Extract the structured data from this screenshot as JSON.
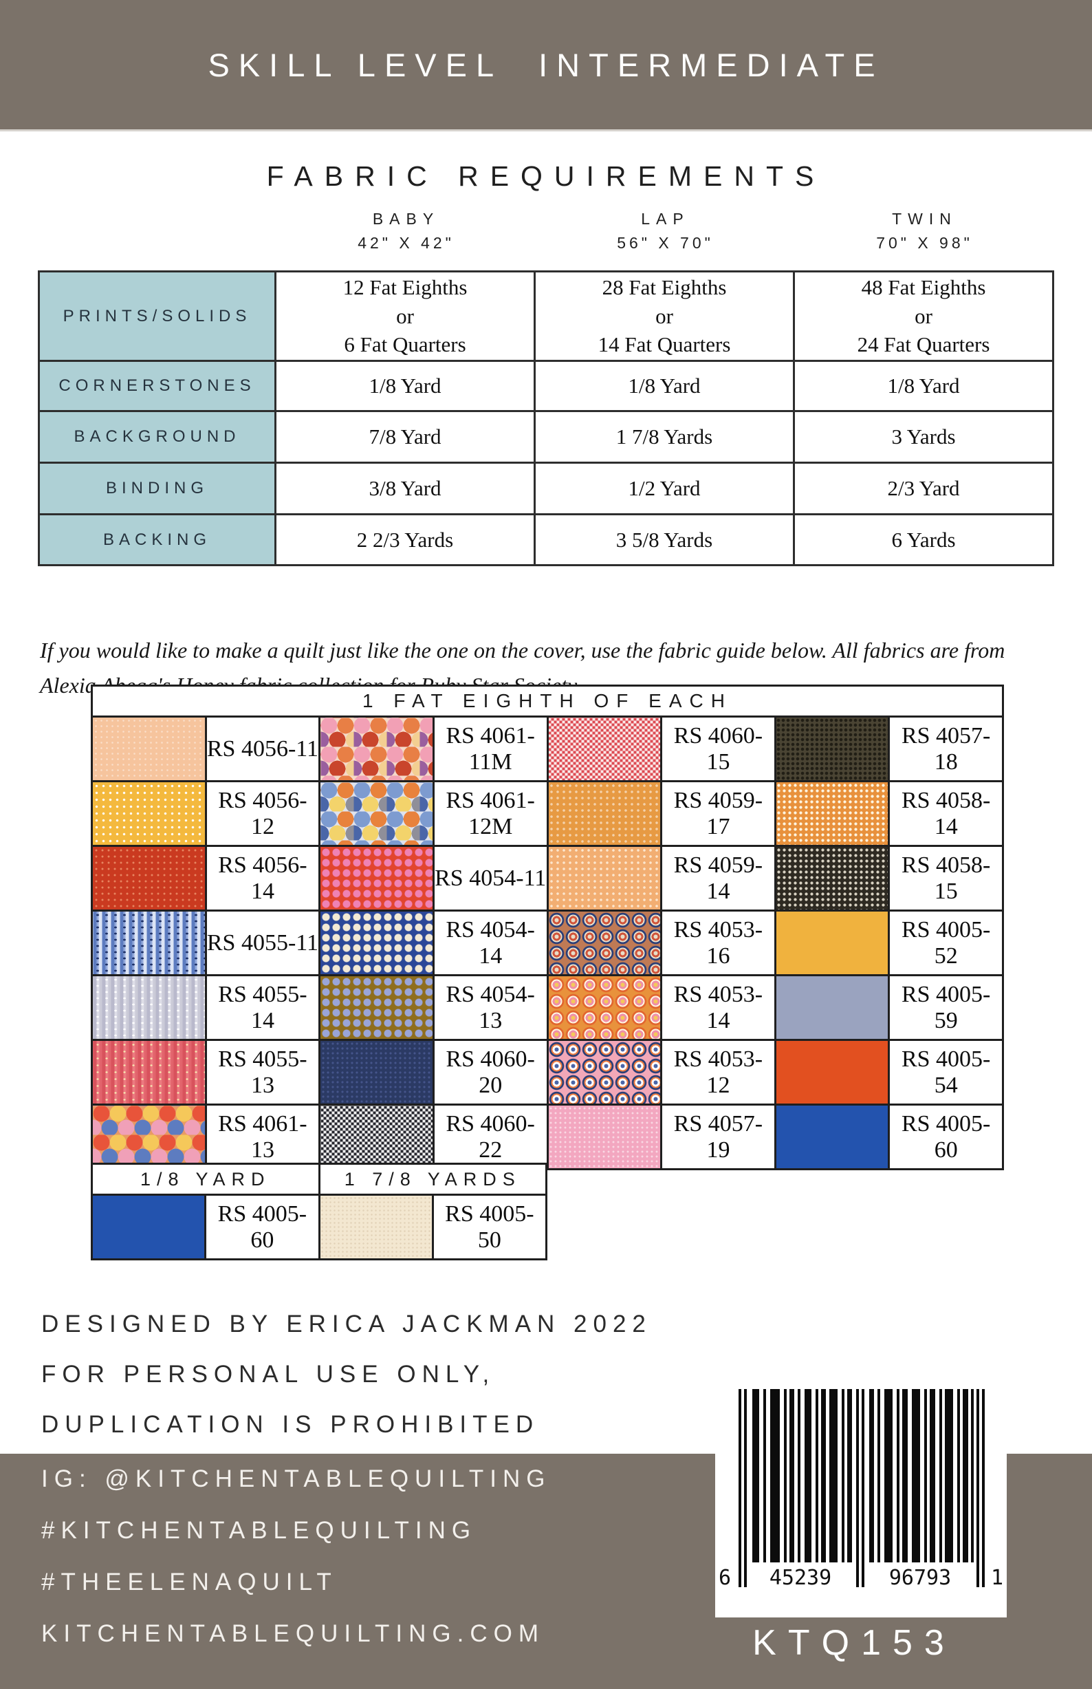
{
  "skill_banner": {
    "label": "SKILL LEVEL",
    "value": "INTERMEDIATE"
  },
  "fabric_requirements": {
    "title": "FABRIC REQUIREMENTS",
    "sizes": [
      {
        "name": "BABY",
        "dims": "42\" X 42\""
      },
      {
        "name": "LAP",
        "dims": "56\" X 70\""
      },
      {
        "name": "TWIN",
        "dims": "70\" X 98\""
      }
    ],
    "rows": [
      {
        "label": "PRINTS/SOLIDS",
        "values": [
          [
            "12 Fat Eighths",
            "or",
            "6 Fat Quarters"
          ],
          [
            "28 Fat Eighths",
            "or",
            "14 Fat Quarters"
          ],
          [
            "48 Fat Eighths",
            "or",
            "24 Fat Quarters"
          ]
        ]
      },
      {
        "label": "CORNERSTONES",
        "values": [
          "1/8 Yard",
          "1/8 Yard",
          "1/8 Yard"
        ]
      },
      {
        "label": "BACKGROUND",
        "values": [
          "7/8 Yard",
          "1 7/8 Yards",
          "3 Yards"
        ]
      },
      {
        "label": "BINDING",
        "values": [
          "3/8 Yard",
          "1/2 Yard",
          "2/3 Yard"
        ]
      },
      {
        "label": "BACKING",
        "values": [
          "2 2/3 Yards",
          "3 5/8 Yards",
          "6 Yards"
        ]
      }
    ]
  },
  "note": "If you would like to make a quilt just like the one on the cover, use the fabric guide below. All fabrics are from Alexia Abegg's Honey fabric collection for Ruby Star Society.",
  "fabric_guide": {
    "header": "1 FAT EIGHTH OF EACH",
    "rows": [
      [
        {
          "code": "RS 4056-11",
          "color": "#f6c49d"
        },
        {
          "code": "RS 4061-11M",
          "color": "#e87f45"
        },
        {
          "code": "RS 4060-15",
          "color": "#dd4a52"
        },
        {
          "code": "RS 4057-18",
          "color": "#4a4433"
        }
      ],
      [
        {
          "code": "RS 4056-12",
          "color": "#f4b93e"
        },
        {
          "code": "RS 4061-12M",
          "color": "#7d9bd0"
        },
        {
          "code": "RS 4059-17",
          "color": "#e79a43"
        },
        {
          "code": "RS 4058-14",
          "color": "#e8913c"
        }
      ],
      [
        {
          "code": "RS 4056-14",
          "color": "#ca3a20"
        },
        {
          "code": "RS 4054-11",
          "color": "#e2452f"
        },
        {
          "code": "RS 4059-14",
          "color": "#f2ae72"
        },
        {
          "code": "RS 4058-15",
          "color": "#2e2a22"
        }
      ],
      [
        {
          "code": "RS 4055-11",
          "color": "#5d7cc0"
        },
        {
          "code": "RS 4054-14",
          "color": "#2b4798"
        },
        {
          "code": "RS 4053-16",
          "color": "#2c3f77"
        },
        {
          "code": "RS 4005-52",
          "color": "#f0b23e"
        }
      ],
      [
        {
          "code": "RS 4055-14",
          "color": "#cbcbd8"
        },
        {
          "code": "RS 4054-13",
          "color": "#8f6e1e"
        },
        {
          "code": "RS 4053-14",
          "color": "#e8923c"
        },
        {
          "code": "RS 4005-59",
          "color": "#9aa3bf"
        }
      ],
      [
        {
          "code": "RS 4055-13",
          "color": "#e2646c"
        },
        {
          "code": "RS 4060-20",
          "color": "#2b3a64"
        },
        {
          "code": "RS 4053-12",
          "color": "#f2a8b8"
        },
        {
          "code": "RS 4005-54",
          "color": "#e25020"
        }
      ],
      [
        {
          "code": "RS 4061-13",
          "color": "#e8543a"
        },
        {
          "code": "RS 4060-22",
          "color": "#26262e"
        },
        {
          "code": "RS 4057-19",
          "color": "#f3a7c0"
        },
        {
          "code": "RS 4005-60",
          "color": "#2353ae"
        }
      ]
    ],
    "extra": {
      "headers": [
        "1/8 YARD",
        "1 7/8 YARDS"
      ],
      "cells": [
        {
          "code": "RS 4005-60",
          "color": "#2353ae"
        },
        {
          "code": "RS 4005-50",
          "color": "#f3e7d0"
        }
      ]
    }
  },
  "credits": {
    "line1": "DESIGNED BY ERICA JACKMAN 2022",
    "line2": "FOR PERSONAL USE ONLY,",
    "line3": "DUPLICATION IS PROHIBITED"
  },
  "footer": {
    "lines": [
      "IG: @KITCHENTABLEQUILTING",
      "#KITCHENTABLEQUILTING",
      "#THEELENAQUILT",
      "KITCHENTABLEQUILTING.COM"
    ],
    "barcode_digits": [
      "6",
      "45239",
      "96793",
      "1"
    ],
    "sku": "KTQ153"
  },
  "colors": {
    "band": "#7b7269",
    "requirements_header_bg": "#aed0d5",
    "requirements_header_text": "#26333e",
    "border": "#2e2e2e",
    "text": "#111111",
    "band_text": "#f3f0ec"
  }
}
